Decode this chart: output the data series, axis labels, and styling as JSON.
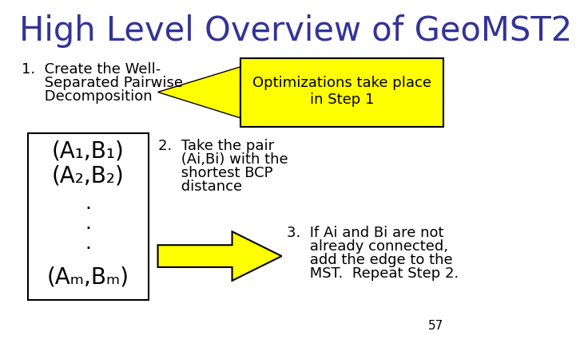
{
  "title": "High Level Overview of GeoMST2",
  "title_color": "#333399",
  "title_fontsize": 30,
  "bg_color": "#ffffff",
  "body_color": "#000000",
  "opt_box_text_line1": "Optimizations take place",
  "opt_box_text_line2": "in Step 1",
  "opt_box_bg": "#ffff00",
  "opt_box_border": "#000000",
  "page_number": "57",
  "arrow_color": "#ffff00",
  "arrow_border": "#000000",
  "step1_lines": [
    "1.  Create the Well-",
    "     Separated Pairwise",
    "     Decomposition"
  ],
  "list_items": [
    "(A₁,B₁)",
    "(A₂,B₂)",
    ".",
    ".",
    ".",
    "(Aₘ,Bₘ)"
  ],
  "step2_lines": [
    "2.  Take the pair",
    "     (Ai,Bi) with the",
    "     shortest BCP",
    "     distance"
  ],
  "step3_lines": [
    "3.  If Ai and Bi are not",
    "     already connected,",
    "     add the edge to the",
    "     MST.  Repeat Step 2."
  ]
}
